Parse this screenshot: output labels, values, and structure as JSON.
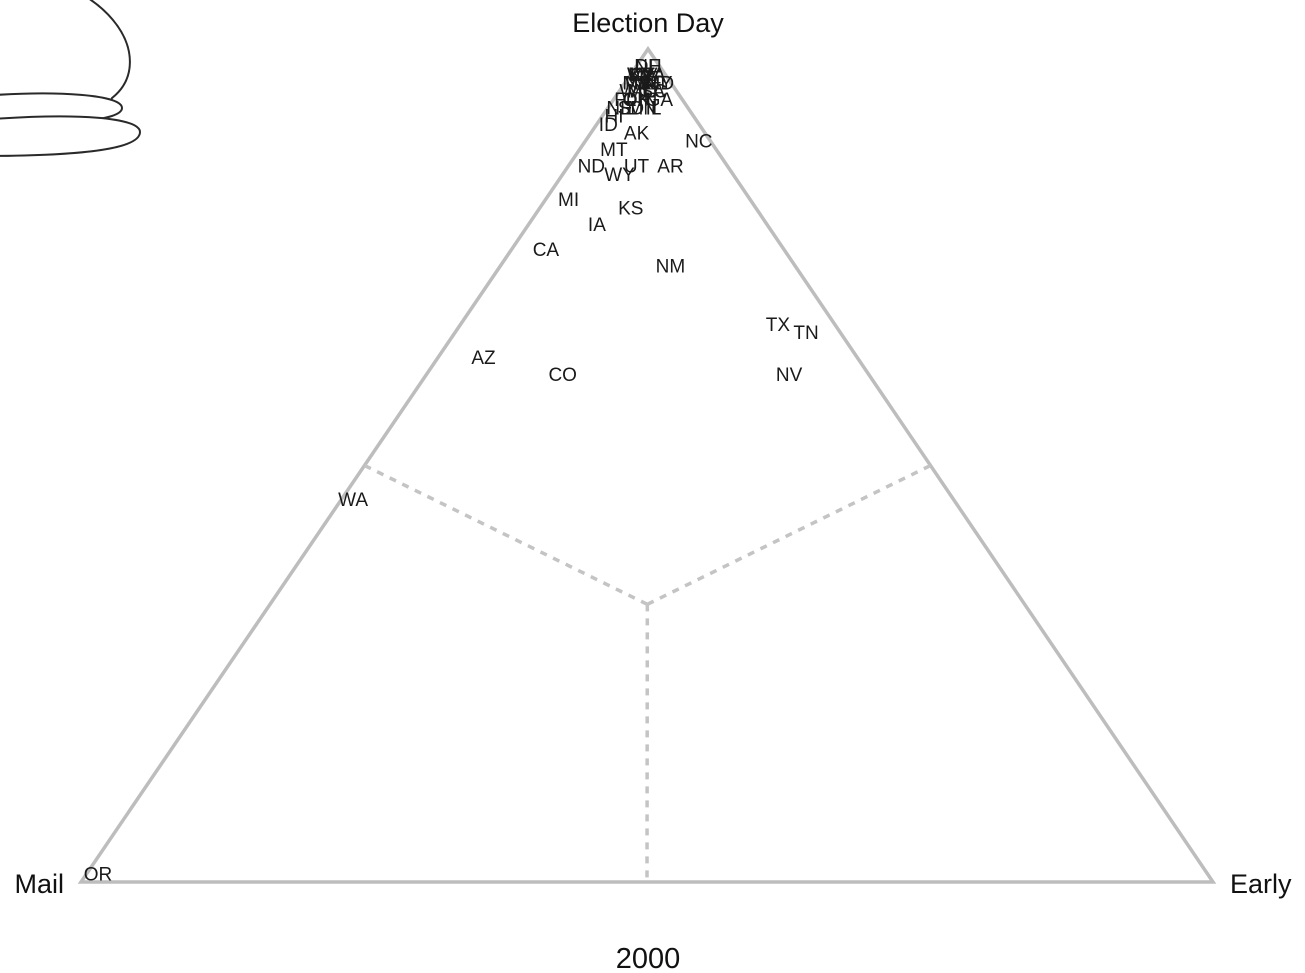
{
  "chart_data": {
    "type": "scatter",
    "subtype": "ternary",
    "title": "2000",
    "vertices": {
      "top": "Election Day",
      "left": "Mail",
      "right": "Early"
    },
    "components": [
      "election_day",
      "mail",
      "early"
    ],
    "grid": false,
    "points": [
      {
        "label": "OR",
        "election_day": 0.01,
        "mail": 0.98,
        "early": 0.01
      },
      {
        "label": "WA",
        "election_day": 0.46,
        "mail": 0.53,
        "early": 0.01
      },
      {
        "label": "AZ",
        "election_day": 0.63,
        "mail": 0.33,
        "early": 0.04
      },
      {
        "label": "CO",
        "election_day": 0.61,
        "mail": 0.27,
        "early": 0.12
      },
      {
        "label": "CA",
        "election_day": 0.76,
        "mail": 0.21,
        "early": 0.03
      },
      {
        "label": "MI",
        "election_day": 0.82,
        "mail": 0.16,
        "early": 0.02
      },
      {
        "label": "IA",
        "election_day": 0.79,
        "mail": 0.15,
        "early": 0.06
      },
      {
        "label": "KS",
        "election_day": 0.81,
        "mail": 0.11,
        "early": 0.08
      },
      {
        "label": "NM",
        "election_day": 0.74,
        "mail": 0.11,
        "early": 0.15
      },
      {
        "label": "TX",
        "election_day": 0.67,
        "mail": 0.05,
        "early": 0.28
      },
      {
        "label": "TN",
        "election_day": 0.66,
        "mail": 0.03,
        "early": 0.31
      },
      {
        "label": "NV",
        "election_day": 0.61,
        "mail": 0.07,
        "early": 0.32
      },
      {
        "label": "NC",
        "election_day": 0.89,
        "mail": 0.01,
        "early": 0.1
      },
      {
        "label": "AR",
        "election_day": 0.86,
        "mail": 0.05,
        "early": 0.09
      },
      {
        "label": "AK",
        "election_day": 0.9,
        "mail": 0.06,
        "early": 0.04
      },
      {
        "label": "MT",
        "election_day": 0.88,
        "mail": 0.09,
        "early": 0.03
      },
      {
        "label": "ND",
        "election_day": 0.86,
        "mail": 0.12,
        "early": 0.02
      },
      {
        "label": "WY",
        "election_day": 0.85,
        "mail": 0.1,
        "early": 0.05
      },
      {
        "label": "UT",
        "election_day": 0.86,
        "mail": 0.08,
        "early": 0.06
      },
      {
        "label": "ID",
        "election_day": 0.91,
        "mail": 0.08,
        "early": 0.01
      },
      {
        "label": "HI",
        "election_day": 0.92,
        "mail": 0.07,
        "early": 0.01
      },
      {
        "label": "NE",
        "election_day": 0.93,
        "mail": 0.06,
        "early": 0.01
      },
      {
        "label": "SD",
        "election_day": 0.93,
        "mail": 0.05,
        "early": 0.02
      },
      {
        "label": "OK",
        "election_day": 0.94,
        "mail": 0.04,
        "early": 0.02
      },
      {
        "label": "FL",
        "election_day": 0.94,
        "mail": 0.05,
        "early": 0.01
      },
      {
        "label": "GA",
        "election_day": 0.94,
        "mail": 0.02,
        "early": 0.04
      },
      {
        "label": "LA",
        "election_day": 0.95,
        "mail": 0.02,
        "early": 0.03
      },
      {
        "label": "VT",
        "election_day": 0.96,
        "mail": 0.03,
        "early": 0.01
      },
      {
        "label": "ME",
        "election_day": 0.96,
        "mail": 0.02,
        "early": 0.02
      },
      {
        "label": "WI",
        "election_day": 0.95,
        "mail": 0.04,
        "early": 0.01
      },
      {
        "label": "NY",
        "election_day": 0.96,
        "mail": 0.01,
        "early": 0.03
      },
      {
        "label": "PA",
        "election_day": 0.97,
        "mail": 0.01,
        "early": 0.02
      },
      {
        "label": "MA",
        "election_day": 0.97,
        "mail": 0.02,
        "early": 0.01
      },
      {
        "label": "NJ",
        "election_day": 0.96,
        "mail": 0.03,
        "early": 0.01
      },
      {
        "label": "DE",
        "election_day": 0.98,
        "mail": 0.01,
        "early": 0.01
      },
      {
        "label": "KY",
        "election_day": 0.97,
        "mail": 0.02,
        "early": 0.01
      },
      {
        "label": "VA",
        "election_day": 0.97,
        "mail": 0.01,
        "early": 0.02
      },
      {
        "label": "RI",
        "election_day": 0.96,
        "mail": 0.02,
        "early": 0.02
      },
      {
        "label": "NH",
        "election_day": 0.98,
        "mail": 0.01,
        "early": 0.01
      },
      {
        "label": "CT",
        "election_day": 0.97,
        "mail": 0.02,
        "early": 0.01
      },
      {
        "label": "MD",
        "election_day": 0.96,
        "mail": 0.01,
        "early": 0.03
      },
      {
        "label": "SC",
        "election_day": 0.95,
        "mail": 0.02,
        "early": 0.03
      },
      {
        "label": "MO",
        "election_day": 0.95,
        "mail": 0.03,
        "early": 0.02
      },
      {
        "label": "IN",
        "election_day": 0.94,
        "mail": 0.03,
        "early": 0.03
      },
      {
        "label": "OH",
        "election_day": 0.94,
        "mail": 0.04,
        "early": 0.02
      },
      {
        "label": "MN",
        "election_day": 0.93,
        "mail": 0.04,
        "early": 0.03
      },
      {
        "label": "IL",
        "election_day": 0.93,
        "mail": 0.03,
        "early": 0.04
      },
      {
        "label": "AL",
        "election_day": 0.95,
        "mail": 0.03,
        "early": 0.02
      },
      {
        "label": "MS",
        "election_day": 0.96,
        "mail": 0.03,
        "early": 0.01
      },
      {
        "label": "WV",
        "election_day": 0.97,
        "mail": 0.02,
        "early": 0.01
      }
    ]
  }
}
